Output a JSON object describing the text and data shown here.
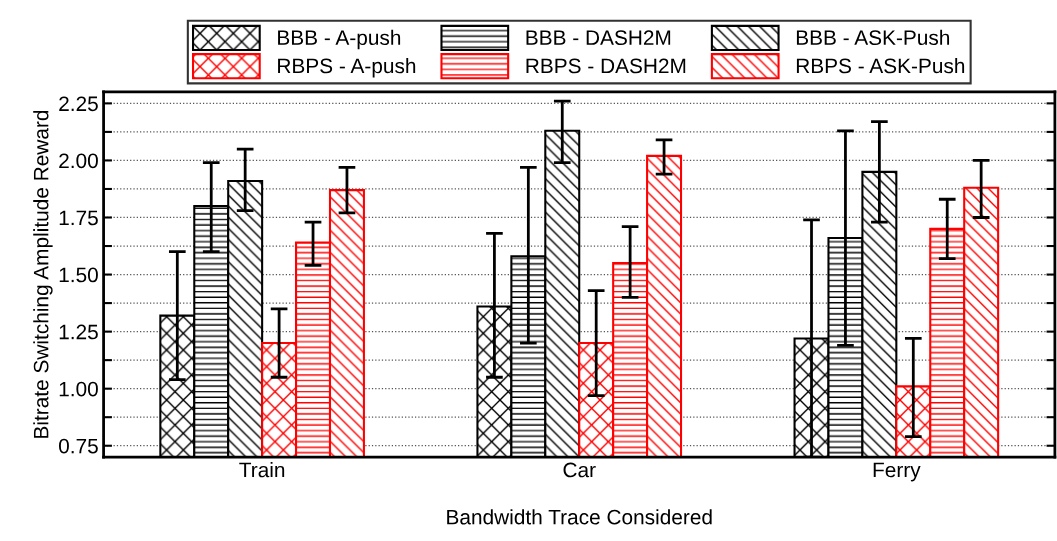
{
  "chart_data": {
    "type": "bar",
    "xlabel": "Bandwidth Trace Considered",
    "ylabel": "Bitrate Switching Amplitude Reward",
    "categories": [
      "Train",
      "Car",
      "Ferry"
    ],
    "series": [
      {
        "name": "BBB - A-push",
        "color": "#000000",
        "values": [
          1.32,
          1.36,
          1.22
        ],
        "errors": [
          [
            1.04,
            1.6
          ],
          [
            1.05,
            1.68
          ],
          [
            0.7,
            1.74
          ]
        ]
      },
      {
        "name": "BBB - DASH2M",
        "color": "#000000",
        "values": [
          1.8,
          1.58,
          1.66
        ],
        "errors": [
          [
            1.6,
            1.99
          ],
          [
            1.2,
            1.97
          ],
          [
            1.19,
            2.13
          ]
        ]
      },
      {
        "name": "BBB - ASK-Push",
        "color": "#000000",
        "values": [
          1.91,
          2.13,
          1.95
        ],
        "errors": [
          [
            1.78,
            2.05
          ],
          [
            1.99,
            2.26
          ],
          [
            1.73,
            2.17
          ]
        ]
      },
      {
        "name": "RBPS - A-push",
        "color": "#ff0000",
        "values": [
          1.2,
          1.2,
          1.01
        ],
        "errors": [
          [
            1.05,
            1.35
          ],
          [
            0.97,
            1.43
          ],
          [
            0.79,
            1.22
          ]
        ]
      },
      {
        "name": "RBPS - DASH2M",
        "color": "#ff0000",
        "values": [
          1.64,
          1.55,
          1.7
        ],
        "errors": [
          [
            1.54,
            1.73
          ],
          [
            1.4,
            1.71
          ],
          [
            1.57,
            1.83
          ]
        ]
      },
      {
        "name": "RBPS - ASK-Push",
        "color": "#ff0000",
        "values": [
          1.87,
          2.02,
          1.88
        ],
        "errors": [
          [
            1.77,
            1.97
          ],
          [
            1.94,
            2.09
          ],
          [
            1.75,
            2.0
          ]
        ]
      }
    ],
    "ylim": [
      0.7,
      2.3
    ],
    "yticks": [
      {
        "value": 0.75,
        "label": "0.75"
      },
      {
        "value": 0.875,
        "label": null
      },
      {
        "value": 1.0,
        "label": "1.00"
      },
      {
        "value": 1.125,
        "label": null
      },
      {
        "value": 1.25,
        "label": "1.25"
      },
      {
        "value": 1.375,
        "label": null
      },
      {
        "value": 1.5,
        "label": "1.50"
      },
      {
        "value": 1.625,
        "label": null
      },
      {
        "value": 1.75,
        "label": "1.75"
      },
      {
        "value": 1.875,
        "label": null
      },
      {
        "value": 2.0,
        "label": "2.00"
      },
      {
        "value": 2.125,
        "label": null
      },
      {
        "value": 2.25,
        "label": "2.25"
      }
    ],
    "grid": "y",
    "legend": "top"
  }
}
